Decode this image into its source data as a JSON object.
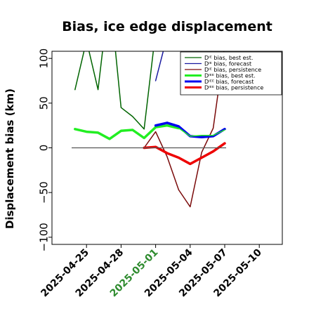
{
  "chart_data": {
    "type": "line",
    "title": "Bias, ice edge displacement",
    "xlabel": "",
    "ylabel": "Displacement bias (km)",
    "ylim": [
      -108,
      108
    ],
    "xlim": [
      "2025-04-22",
      "2025-05-12"
    ],
    "yticks": [
      "100",
      "50",
      "0",
      "−50",
      "−100"
    ],
    "ytick_values": [
      100,
      50,
      0,
      -50,
      -100
    ],
    "xticks": [
      "2025-04-25",
      "2025-04-28",
      "2025-05-01",
      "2025-05-04",
      "2025-05-07",
      "2025-05-10"
    ],
    "highlight_xtick": "2025-05-01",
    "highlight_color": "#2e8b2e",
    "zero_line": true,
    "grid": false,
    "legend_placement": "top-right",
    "series": [
      {
        "name": "Dᴵᴱ bias, best est.",
        "color": "#006400",
        "width": 1.5,
        "x": [
          "2025-04-24",
          "2025-04-25",
          "2025-04-26",
          "2025-04-27",
          "2025-04-28",
          "2025-04-29",
          "2025-04-30",
          "2025-05-01"
        ],
        "y": [
          65,
          120,
          65,
          175,
          45,
          35,
          21,
          130
        ]
      },
      {
        "name": "Dᴵᴱ bias, forecast",
        "color": "#1a1aa0",
        "width": 1.5,
        "x": [
          "2025-05-01",
          "2025-05-02"
        ],
        "y": [
          75,
          125
        ]
      },
      {
        "name": "Dᴵᴱ bias, persistence",
        "color": "#7a0a0a",
        "width": 1.5,
        "x": [
          "2025-04-30",
          "2025-05-01",
          "2025-05-02",
          "2025-05-03",
          "2025-05-04",
          "2025-05-05",
          "2025-05-06",
          "2025-05-07"
        ],
        "y": [
          0,
          18,
          -10,
          -47,
          -66,
          -5,
          22,
          115
        ]
      },
      {
        "name": "Dᴵᴱᴱ bias, best est.",
        "color": "#22ee22",
        "width": 3.5,
        "x": [
          "2025-04-24",
          "2025-04-25",
          "2025-04-26",
          "2025-04-27",
          "2025-04-28",
          "2025-04-29",
          "2025-04-30",
          "2025-05-01",
          "2025-05-02",
          "2025-05-03"
        ],
        "y": [
          21,
          18,
          17,
          10,
          19,
          20,
          11,
          23,
          25,
          22
        ]
      },
      {
        "name": "Dᴵᴱᴱ bias, forecast",
        "color": "#0000ee",
        "width": 3.5,
        "x": [
          "2025-05-01",
          "2025-05-02",
          "2025-05-03",
          "2025-05-04",
          "2025-05-05",
          "2025-05-06",
          "2025-05-07"
        ],
        "y": [
          25,
          28,
          24,
          13,
          12,
          13,
          21
        ]
      },
      {
        "name": "Dᴵᴱᴱ bias, persistence",
        "color": "#ee0000",
        "width": 3.5,
        "x": [
          "2025-04-30",
          "2025-05-01",
          "2025-05-02",
          "2025-05-03",
          "2025-05-04",
          "2025-05-05",
          "2025-05-06",
          "2025-05-07"
        ],
        "y": [
          0,
          1,
          -6,
          -11,
          -18,
          -11,
          -4,
          5
        ]
      },
      {
        "name": "",
        "color": "#22ee22",
        "width": 1.5,
        "x": [
          "2025-05-03",
          "2025-05-04",
          "2025-05-05",
          "2025-05-06",
          "2025-05-07"
        ],
        "y": [
          22,
          13,
          14,
          14,
          20
        ]
      }
    ]
  }
}
